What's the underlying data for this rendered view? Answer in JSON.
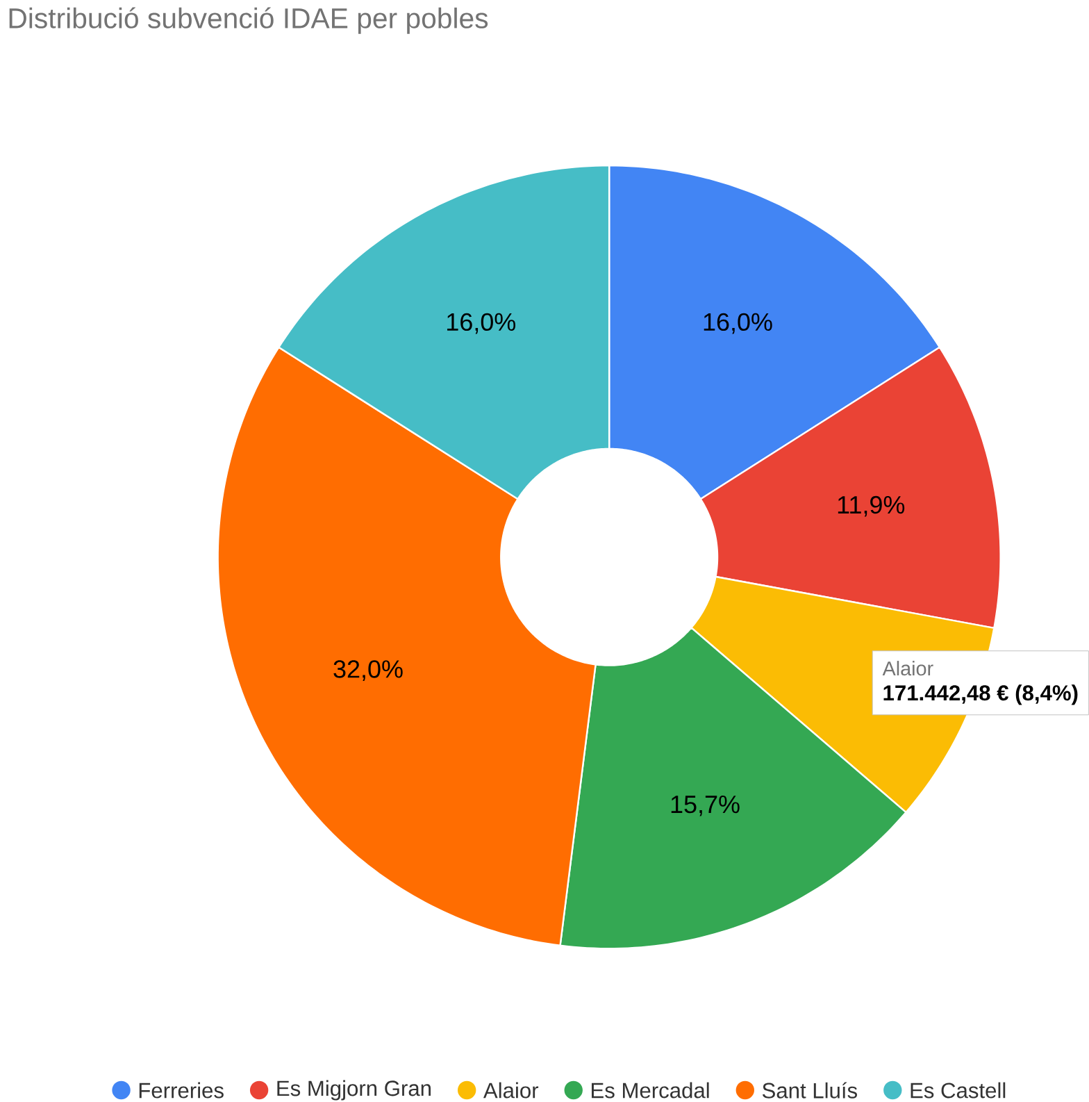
{
  "chart_data": {
    "type": "donut",
    "title": "Distribució subvenció IDAE per pobles",
    "categories": [
      "Ferreries",
      "Es Migjorn Gran",
      "Alaior",
      "Es Mercadal",
      "Sant Lluís",
      "Es Castell"
    ],
    "values": [
      16.0,
      11.9,
      8.4,
      15.7,
      32.0,
      16.0
    ],
    "colors": [
      "#4285f4",
      "#ea4335",
      "#fbbc04",
      "#34a853",
      "#ff6d01",
      "#46bdc6"
    ],
    "value_labels": [
      "16,0%",
      "11,9%",
      null,
      "15,7%",
      "32,0%",
      "16,0%"
    ],
    "annotations": [
      "Alaior",
      "171.442,48 € (8,4%)"
    ],
    "legend": "bottom"
  }
}
